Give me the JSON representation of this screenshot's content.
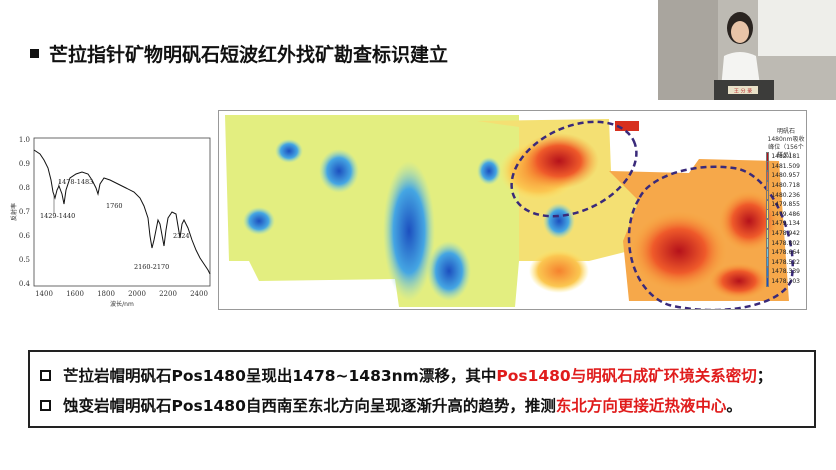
{
  "slide": {
    "title": "芒拉指针矿物明矾石短波红外找矿勘查标识建立"
  },
  "spectrum": {
    "ylabel": "反射率",
    "xlabel": "波长/nm",
    "y_ticks": [
      "1.0",
      "0.9",
      "0.8",
      "0.7",
      "0.6",
      "0.5",
      "0.4"
    ],
    "x_ticks": [
      "1400",
      "1600",
      "1800",
      "2000",
      "2200",
      "2400"
    ],
    "annotations": {
      "a1": "1478-1483",
      "a2": "1429-1440",
      "a3": "1760",
      "a4": "2324",
      "a5": "2160-2170"
    }
  },
  "map_legend": {
    "title_line1": "明矾石1480nm吸收",
    "title_line2": "峰位（156个样品）",
    "entries": [
      {
        "value": "1482.181",
        "color": "#b5121b"
      },
      {
        "value": "1481.509",
        "color": "#d7301f"
      },
      {
        "value": "1480.957",
        "color": "#ef5a2a"
      },
      {
        "value": "1480.718",
        "color": "#f5822e"
      },
      {
        "value": "1480.236",
        "color": "#f9a63a"
      },
      {
        "value": "1479.855",
        "color": "#fbc751"
      },
      {
        "value": "1479.486",
        "color": "#fde66b"
      },
      {
        "value": "1479.134",
        "color": "#eef27a"
      },
      {
        "value": "1478.942",
        "color": "#c9e88a"
      },
      {
        "value": "1478.802",
        "color": "#9bdcc4"
      },
      {
        "value": "1478.664",
        "color": "#6fc9e6"
      },
      {
        "value": "1478.522",
        "color": "#45a6e3"
      },
      {
        "value": "1478.339",
        "color": "#2a7bd4"
      },
      {
        "value": "1478.203",
        "color": "#1c4fbf"
      }
    ]
  },
  "notes": {
    "line1_prefix": "芒拉岩帽明矾石Pos1480呈现出1478~1483nm漂移，其中",
    "line1_highlight": "Pos1480与明矾石成矿环境关系密切",
    "line1_suffix": "；",
    "line2_prefix": "蚀变岩帽明矾石Pos1480自西南至东北方向呈现逐渐升高的趋势，推测",
    "line2_highlight": "东北方向更接近热液中心",
    "line2_suffix": "。"
  },
  "video": {
    "nameplate": "王 分 录"
  }
}
